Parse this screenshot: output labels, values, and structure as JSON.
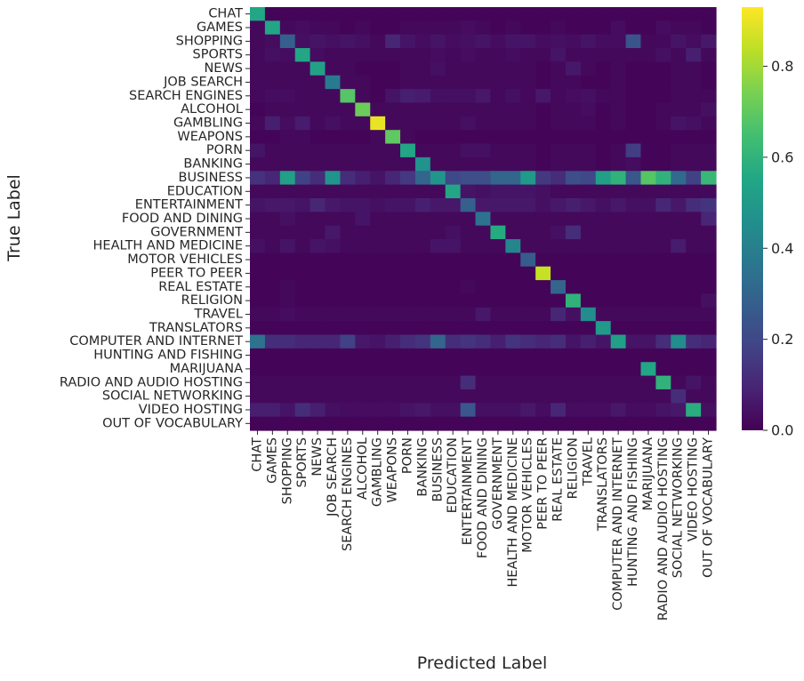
{
  "chart_data": {
    "type": "heatmap",
    "title": "",
    "xlabel": "Predicted Label",
    "ylabel": "True Label",
    "colormap": "viridis",
    "vmin": 0.0,
    "vmax": 0.93,
    "colorbar_ticks": [
      "0.0",
      "0.2",
      "0.4",
      "0.6",
      "0.8"
    ],
    "colorbar_tick_values": [
      0.0,
      0.2,
      0.4,
      0.6,
      0.8
    ],
    "categories": [
      "CHAT",
      "GAMES",
      "SHOPPING",
      "SPORTS",
      "NEWS",
      "JOB SEARCH",
      "SEARCH ENGINES",
      "ALCOHOL",
      "GAMBLING",
      "WEAPONS",
      "PORN",
      "BANKING",
      "BUSINESS",
      "EDUCATION",
      "ENTERTAINMENT",
      "FOOD AND DINING",
      "GOVERNMENT",
      "HEALTH AND MEDICINE",
      "MOTOR VEHICLES",
      "PEER TO PEER",
      "REAL ESTATE",
      "RELIGION",
      "TRAVEL",
      "TRANSLATORS",
      "COMPUTER AND INTERNET",
      "HUNTING AND FISHING",
      "MARIJUANA",
      "RADIO AND AUDIO HOSTING",
      "SOCIAL NETWORKING",
      "VIDEO HOSTING",
      "OUT OF VOCABULARY"
    ],
    "matrix": [
      [
        0.55,
        0.01,
        0.01,
        0.01,
        0.01,
        0.01,
        0.01,
        0.01,
        0.01,
        0.01,
        0.01,
        0.01,
        0.01,
        0.01,
        0.01,
        0.01,
        0.01,
        0.01,
        0.01,
        0.01,
        0.01,
        0.01,
        0.01,
        0.01,
        0.01,
        0.01,
        0.01,
        0.01,
        0.01,
        0.01,
        0.01
      ],
      [
        0.02,
        0.55,
        0.02,
        0.03,
        0.02,
        0.02,
        0.01,
        0.02,
        0.01,
        0.01,
        0.02,
        0.02,
        0.02,
        0.02,
        0.03,
        0.02,
        0.01,
        0.02,
        0.01,
        0.01,
        0.02,
        0.01,
        0.01,
        0.01,
        0.03,
        0.01,
        0.01,
        0.03,
        0.02,
        0.02,
        0.01
      ],
      [
        0.02,
        0.03,
        0.28,
        0.04,
        0.05,
        0.04,
        0.05,
        0.04,
        0.02,
        0.1,
        0.05,
        0.03,
        0.05,
        0.03,
        0.04,
        0.05,
        0.03,
        0.05,
        0.05,
        0.03,
        0.04,
        0.03,
        0.05,
        0.03,
        0.03,
        0.24,
        0.02,
        0.02,
        0.05,
        0.03,
        0.06
      ],
      [
        0.02,
        0.04,
        0.03,
        0.55,
        0.03,
        0.02,
        0.02,
        0.02,
        0.02,
        0.02,
        0.02,
        0.02,
        0.03,
        0.02,
        0.03,
        0.02,
        0.02,
        0.03,
        0.02,
        0.02,
        0.05,
        0.02,
        0.02,
        0.02,
        0.02,
        0.02,
        0.02,
        0.04,
        0.02,
        0.08,
        0.02
      ],
      [
        0.02,
        0.02,
        0.02,
        0.02,
        0.53,
        0.02,
        0.02,
        0.01,
        0.01,
        0.01,
        0.02,
        0.02,
        0.04,
        0.02,
        0.02,
        0.02,
        0.02,
        0.02,
        0.02,
        0.01,
        0.02,
        0.06,
        0.02,
        0.01,
        0.02,
        0.01,
        0.01,
        0.01,
        0.02,
        0.02,
        0.01
      ],
      [
        0.02,
        0.02,
        0.02,
        0.02,
        0.02,
        0.38,
        0.02,
        0.02,
        0.01,
        0.01,
        0.02,
        0.02,
        0.02,
        0.02,
        0.02,
        0.02,
        0.02,
        0.02,
        0.02,
        0.01,
        0.02,
        0.02,
        0.01,
        0.01,
        0.02,
        0.01,
        0.01,
        0.01,
        0.02,
        0.02,
        0.01
      ],
      [
        0.02,
        0.03,
        0.03,
        0.02,
        0.02,
        0.02,
        0.68,
        0.02,
        0.01,
        0.05,
        0.08,
        0.07,
        0.04,
        0.04,
        0.04,
        0.06,
        0.02,
        0.04,
        0.02,
        0.06,
        0.02,
        0.03,
        0.04,
        0.02,
        0.02,
        0.01,
        0.01,
        0.01,
        0.02,
        0.02,
        0.02
      ],
      [
        0.01,
        0.02,
        0.02,
        0.02,
        0.02,
        0.02,
        0.02,
        0.72,
        0.02,
        0.02,
        0.02,
        0.02,
        0.02,
        0.02,
        0.02,
        0.02,
        0.02,
        0.02,
        0.02,
        0.01,
        0.02,
        0.02,
        0.03,
        0.01,
        0.02,
        0.01,
        0.01,
        0.02,
        0.02,
        0.02,
        0.04
      ],
      [
        0.02,
        0.08,
        0.03,
        0.07,
        0.02,
        0.04,
        0.02,
        0.02,
        0.9,
        0.02,
        0.02,
        0.02,
        0.02,
        0.02,
        0.04,
        0.02,
        0.02,
        0.02,
        0.02,
        0.01,
        0.02,
        0.02,
        0.02,
        0.01,
        0.02,
        0.01,
        0.01,
        0.02,
        0.05,
        0.04,
        0.02
      ],
      [
        0.01,
        0.01,
        0.02,
        0.02,
        0.01,
        0.01,
        0.01,
        0.01,
        0.02,
        0.7,
        0.02,
        0.01,
        0.01,
        0.01,
        0.01,
        0.01,
        0.01,
        0.01,
        0.01,
        0.01,
        0.01,
        0.01,
        0.01,
        0.01,
        0.01,
        0.01,
        0.01,
        0.01,
        0.01,
        0.01,
        0.01
      ],
      [
        0.05,
        0.02,
        0.02,
        0.02,
        0.02,
        0.02,
        0.02,
        0.02,
        0.02,
        0.02,
        0.55,
        0.02,
        0.02,
        0.02,
        0.04,
        0.04,
        0.02,
        0.02,
        0.02,
        0.01,
        0.02,
        0.02,
        0.02,
        0.01,
        0.02,
        0.17,
        0.01,
        0.01,
        0.02,
        0.02,
        0.02
      ],
      [
        0.02,
        0.02,
        0.02,
        0.02,
        0.02,
        0.02,
        0.02,
        0.02,
        0.02,
        0.02,
        0.02,
        0.47,
        0.02,
        0.02,
        0.02,
        0.02,
        0.02,
        0.02,
        0.02,
        0.01,
        0.02,
        0.02,
        0.02,
        0.01,
        0.02,
        0.03,
        0.01,
        0.01,
        0.02,
        0.02,
        0.02
      ],
      [
        0.13,
        0.1,
        0.52,
        0.18,
        0.12,
        0.48,
        0.12,
        0.08,
        0.05,
        0.1,
        0.15,
        0.3,
        0.48,
        0.2,
        0.22,
        0.22,
        0.3,
        0.3,
        0.5,
        0.15,
        0.12,
        0.22,
        0.2,
        0.52,
        0.6,
        0.25,
        0.68,
        0.6,
        0.32,
        0.18,
        0.62
      ],
      [
        0.02,
        0.02,
        0.02,
        0.02,
        0.02,
        0.02,
        0.02,
        0.02,
        0.02,
        0.02,
        0.02,
        0.02,
        0.02,
        0.55,
        0.05,
        0.04,
        0.05,
        0.05,
        0.05,
        0.04,
        0.02,
        0.02,
        0.02,
        0.02,
        0.02,
        0.02,
        0.02,
        0.02,
        0.02,
        0.02,
        0.02
      ],
      [
        0.05,
        0.06,
        0.06,
        0.05,
        0.1,
        0.06,
        0.05,
        0.05,
        0.04,
        0.05,
        0.05,
        0.08,
        0.06,
        0.06,
        0.28,
        0.06,
        0.06,
        0.06,
        0.06,
        0.04,
        0.06,
        0.08,
        0.06,
        0.04,
        0.06,
        0.04,
        0.04,
        0.1,
        0.06,
        0.12,
        0.14
      ],
      [
        0.02,
        0.02,
        0.04,
        0.02,
        0.02,
        0.02,
        0.02,
        0.05,
        0.02,
        0.02,
        0.02,
        0.02,
        0.02,
        0.02,
        0.02,
        0.35,
        0.02,
        0.02,
        0.02,
        0.02,
        0.02,
        0.02,
        0.02,
        0.02,
        0.02,
        0.02,
        0.02,
        0.02,
        0.02,
        0.02,
        0.1
      ],
      [
        0.02,
        0.02,
        0.02,
        0.02,
        0.02,
        0.06,
        0.02,
        0.02,
        0.02,
        0.02,
        0.02,
        0.02,
        0.02,
        0.04,
        0.02,
        0.02,
        0.57,
        0.02,
        0.02,
        0.02,
        0.04,
        0.12,
        0.02,
        0.02,
        0.02,
        0.02,
        0.02,
        0.02,
        0.02,
        0.02,
        0.02
      ],
      [
        0.04,
        0.02,
        0.05,
        0.02,
        0.05,
        0.04,
        0.02,
        0.02,
        0.02,
        0.02,
        0.02,
        0.02,
        0.05,
        0.05,
        0.02,
        0.02,
        0.02,
        0.42,
        0.02,
        0.02,
        0.02,
        0.02,
        0.02,
        0.02,
        0.02,
        0.02,
        0.02,
        0.02,
        0.07,
        0.02,
        0.02
      ],
      [
        0.01,
        0.01,
        0.01,
        0.01,
        0.01,
        0.01,
        0.01,
        0.01,
        0.01,
        0.01,
        0.01,
        0.01,
        0.01,
        0.01,
        0.01,
        0.01,
        0.01,
        0.01,
        0.27,
        0.01,
        0.01,
        0.01,
        0.01,
        0.01,
        0.01,
        0.01,
        0.01,
        0.01,
        0.01,
        0.01,
        0.01
      ],
      [
        0.01,
        0.01,
        0.01,
        0.01,
        0.01,
        0.01,
        0.01,
        0.01,
        0.01,
        0.01,
        0.01,
        0.01,
        0.01,
        0.01,
        0.01,
        0.01,
        0.01,
        0.01,
        0.01,
        0.85,
        0.01,
        0.01,
        0.01,
        0.01,
        0.01,
        0.01,
        0.01,
        0.01,
        0.01,
        0.01,
        0.01
      ],
      [
        0.01,
        0.01,
        0.02,
        0.01,
        0.01,
        0.01,
        0.01,
        0.01,
        0.01,
        0.01,
        0.01,
        0.01,
        0.01,
        0.01,
        0.02,
        0.01,
        0.01,
        0.01,
        0.01,
        0.01,
        0.3,
        0.01,
        0.01,
        0.01,
        0.01,
        0.01,
        0.01,
        0.01,
        0.01,
        0.01,
        0.01
      ],
      [
        0.01,
        0.01,
        0.02,
        0.01,
        0.01,
        0.01,
        0.01,
        0.01,
        0.01,
        0.01,
        0.01,
        0.01,
        0.01,
        0.01,
        0.01,
        0.01,
        0.01,
        0.01,
        0.01,
        0.01,
        0.01,
        0.6,
        0.01,
        0.01,
        0.01,
        0.01,
        0.01,
        0.01,
        0.01,
        0.01,
        0.04
      ],
      [
        0.02,
        0.02,
        0.03,
        0.02,
        0.02,
        0.02,
        0.02,
        0.02,
        0.02,
        0.02,
        0.02,
        0.02,
        0.02,
        0.02,
        0.02,
        0.06,
        0.02,
        0.02,
        0.02,
        0.02,
        0.1,
        0.04,
        0.45,
        0.02,
        0.02,
        0.02,
        0.02,
        0.02,
        0.02,
        0.02,
        0.02
      ],
      [
        0.01,
        0.01,
        0.01,
        0.01,
        0.01,
        0.01,
        0.01,
        0.01,
        0.01,
        0.01,
        0.01,
        0.01,
        0.01,
        0.01,
        0.01,
        0.01,
        0.01,
        0.01,
        0.01,
        0.01,
        0.01,
        0.01,
        0.01,
        0.5,
        0.01,
        0.01,
        0.01,
        0.01,
        0.01,
        0.01,
        0.01
      ],
      [
        0.35,
        0.12,
        0.12,
        0.1,
        0.1,
        0.1,
        0.18,
        0.06,
        0.05,
        0.08,
        0.12,
        0.14,
        0.3,
        0.12,
        0.14,
        0.12,
        0.08,
        0.14,
        0.12,
        0.1,
        0.12,
        0.05,
        0.08,
        0.05,
        0.52,
        0.05,
        0.05,
        0.12,
        0.45,
        0.12,
        0.1
      ],
      [
        0.01,
        0.01,
        0.01,
        0.01,
        0.01,
        0.01,
        0.01,
        0.01,
        0.01,
        0.01,
        0.01,
        0.01,
        0.01,
        0.01,
        0.01,
        0.01,
        0.01,
        0.01,
        0.01,
        0.01,
        0.01,
        0.01,
        0.01,
        0.01,
        0.01,
        0.01,
        0.01,
        0.01,
        0.01,
        0.01,
        0.01
      ],
      [
        0.01,
        0.01,
        0.01,
        0.01,
        0.01,
        0.01,
        0.01,
        0.01,
        0.01,
        0.01,
        0.01,
        0.01,
        0.01,
        0.01,
        0.01,
        0.01,
        0.01,
        0.01,
        0.01,
        0.01,
        0.01,
        0.01,
        0.01,
        0.01,
        0.01,
        0.01,
        0.55,
        0.01,
        0.01,
        0.01,
        0.01
      ],
      [
        0.02,
        0.02,
        0.02,
        0.02,
        0.02,
        0.02,
        0.02,
        0.02,
        0.02,
        0.02,
        0.02,
        0.02,
        0.02,
        0.02,
        0.12,
        0.02,
        0.02,
        0.02,
        0.02,
        0.02,
        0.02,
        0.02,
        0.02,
        0.02,
        0.02,
        0.02,
        0.02,
        0.6,
        0.02,
        0.05,
        0.02
      ],
      [
        0.02,
        0.02,
        0.02,
        0.02,
        0.02,
        0.02,
        0.02,
        0.02,
        0.02,
        0.02,
        0.02,
        0.02,
        0.02,
        0.02,
        0.02,
        0.02,
        0.02,
        0.02,
        0.02,
        0.02,
        0.02,
        0.02,
        0.02,
        0.02,
        0.02,
        0.02,
        0.02,
        0.02,
        0.12,
        0.02,
        0.02
      ],
      [
        0.08,
        0.08,
        0.05,
        0.12,
        0.08,
        0.04,
        0.03,
        0.03,
        0.03,
        0.03,
        0.05,
        0.06,
        0.04,
        0.04,
        0.25,
        0.04,
        0.04,
        0.04,
        0.06,
        0.03,
        0.1,
        0.03,
        0.03,
        0.03,
        0.06,
        0.03,
        0.03,
        0.05,
        0.06,
        0.58,
        0.04
      ],
      [
        0.01,
        0.01,
        0.01,
        0.01,
        0.01,
        0.01,
        0.01,
        0.01,
        0.01,
        0.01,
        0.01,
        0.01,
        0.01,
        0.01,
        0.01,
        0.01,
        0.01,
        0.01,
        0.01,
        0.01,
        0.01,
        0.01,
        0.01,
        0.01,
        0.01,
        0.01,
        0.01,
        0.01,
        0.01,
        0.01,
        0.01
      ]
    ]
  }
}
